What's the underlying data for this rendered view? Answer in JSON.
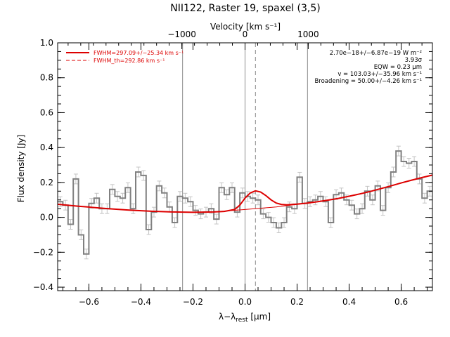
{
  "chart_data": {
    "type": "line",
    "title": "NII122, Raster 19, spaxel (3,5)",
    "top_axis_label": "Velocity [km s⁻¹]",
    "top_axis_ticks": [
      -1000,
      0,
      1000
    ],
    "xlabel": "λ−λ",
    "xlabel_sub": "rest",
    "xlabel_unit": " [μm]",
    "ylabel": "Flux density [Jy]",
    "xlim": [
      -0.72,
      0.72
    ],
    "ylim": [
      -0.42,
      1.0
    ],
    "x_ticks": [
      -0.6,
      -0.4,
      -0.2,
      0.0,
      0.2,
      0.4,
      0.6
    ],
    "y_ticks": [
      -0.4,
      -0.2,
      0.0,
      0.2,
      0.4,
      0.6,
      0.8,
      1.0
    ],
    "vlines": [
      {
        "x": -0.24,
        "style": "solid"
      },
      {
        "x": 0.0,
        "style": "solid"
      },
      {
        "x": 0.04,
        "style": "dashed"
      },
      {
        "x": 0.24,
        "style": "solid"
      }
    ],
    "legend": [
      {
        "label": "FWHM=297.09+/−25.34 km s⁻¹",
        "style": "solid",
        "color": "#dd0000"
      },
      {
        "label": "FWHM_th=292.86 km s⁻¹",
        "style": "dashed",
        "color": "#dd0000"
      }
    ],
    "annotations": [
      "2.70e−18+/−6.87e−19 W m⁻²",
      "3.93σ",
      "EQW = 0.23 μm",
      "v = 103.03+/−35.96 km s⁻¹",
      "Broadening = 50.00+/−4.26 km s⁻¹"
    ],
    "series": [
      {
        "type": "step",
        "color": "#808080",
        "x": [
          -0.71,
          -0.69,
          -0.67,
          -0.65,
          -0.63,
          -0.61,
          -0.59,
          -0.57,
          -0.55,
          -0.53,
          -0.51,
          -0.49,
          -0.47,
          -0.45,
          -0.43,
          -0.41,
          -0.39,
          -0.37,
          -0.35,
          -0.33,
          -0.31,
          -0.29,
          -0.27,
          -0.25,
          -0.23,
          -0.21,
          -0.19,
          -0.17,
          -0.15,
          -0.13,
          -0.11,
          -0.09,
          -0.07,
          -0.05,
          -0.03,
          -0.01,
          0.01,
          0.03,
          0.05,
          0.07,
          0.09,
          0.11,
          0.13,
          0.15,
          0.17,
          0.19,
          0.21,
          0.23,
          0.25,
          0.27,
          0.29,
          0.31,
          0.33,
          0.35,
          0.37,
          0.39,
          0.41,
          0.43,
          0.45,
          0.47,
          0.49,
          0.51,
          0.53,
          0.55,
          0.57,
          0.59,
          0.61,
          0.63,
          0.65,
          0.67,
          0.69,
          0.71
        ],
        "y": [
          0.09,
          0.07,
          -0.04,
          0.22,
          -0.1,
          -0.21,
          0.08,
          0.11,
          0.05,
          0.05,
          0.16,
          0.12,
          0.11,
          0.17,
          0.05,
          0.26,
          0.24,
          -0.07,
          0.03,
          0.18,
          0.14,
          0.06,
          -0.03,
          0.12,
          0.11,
          0.09,
          0.04,
          0.02,
          0.03,
          0.05,
          -0.01,
          0.17,
          0.13,
          0.17,
          0.03,
          0.14,
          0.12,
          0.11,
          0.1,
          0.02,
          0.0,
          -0.03,
          -0.06,
          -0.03,
          0.06,
          0.05,
          0.23,
          0.08,
          0.09,
          0.1,
          0.12,
          0.09,
          -0.03,
          0.13,
          0.14,
          0.1,
          0.07,
          0.02,
          0.05,
          0.15,
          0.1,
          0.18,
          0.04,
          0.17,
          0.26,
          0.38,
          0.32,
          0.31,
          0.32,
          0.22,
          0.11,
          0.15
        ],
        "err": 0.028
      },
      {
        "type": "fit",
        "color": "#dd0000",
        "style": "solid",
        "x": [
          -0.72,
          -0.68,
          -0.64,
          -0.6,
          -0.56,
          -0.52,
          -0.48,
          -0.44,
          -0.4,
          -0.36,
          -0.32,
          -0.28,
          -0.24,
          -0.2,
          -0.16,
          -0.12,
          -0.08,
          -0.04,
          -0.02,
          0.0,
          0.02,
          0.04,
          0.06,
          0.08,
          0.1,
          0.12,
          0.14,
          0.16,
          0.2,
          0.24,
          0.28,
          0.32,
          0.36,
          0.4,
          0.44,
          0.48,
          0.52,
          0.56,
          0.6,
          0.64,
          0.68,
          0.72
        ],
        "y": [
          0.075,
          0.069,
          0.064,
          0.059,
          0.054,
          0.049,
          0.045,
          0.041,
          0.038,
          0.035,
          0.033,
          0.031,
          0.03,
          0.029,
          0.03,
          0.031,
          0.034,
          0.045,
          0.07,
          0.11,
          0.14,
          0.152,
          0.145,
          0.125,
          0.1,
          0.082,
          0.074,
          0.072,
          0.076,
          0.082,
          0.09,
          0.099,
          0.109,
          0.121,
          0.134,
          0.148,
          0.164,
          0.18,
          0.197,
          0.213,
          0.228,
          0.242
        ]
      },
      {
        "type": "baseline",
        "color": "#dd0000",
        "style": "thin",
        "x": [
          -0.72,
          -0.6,
          -0.48,
          -0.36,
          -0.24,
          -0.12,
          0.0,
          0.12,
          0.24,
          0.36,
          0.48,
          0.6,
          0.72
        ],
        "y": [
          0.075,
          0.059,
          0.045,
          0.035,
          0.03,
          0.031,
          0.045,
          0.06,
          0.082,
          0.109,
          0.148,
          0.197,
          0.242
        ]
      }
    ]
  }
}
